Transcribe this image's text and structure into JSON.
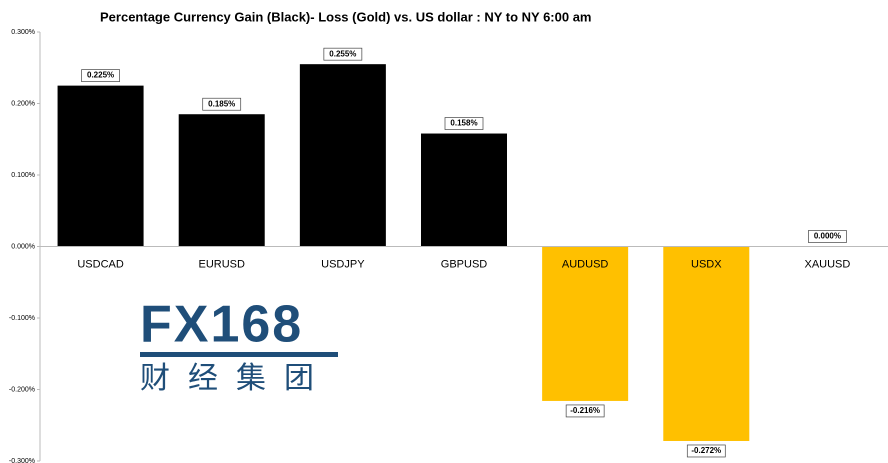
{
  "chart_data": {
    "type": "bar",
    "title": "Percentage Currency  Gain (Black)- Loss (Gold)  vs. US dollar :  NY  to  NY 6:00 am",
    "categories": [
      "USDCAD",
      "EURUSD",
      "USDJPY",
      "GBPUSD",
      "AUDUSD",
      "USDX",
      "XAUUSD"
    ],
    "values": [
      0.225,
      0.185,
      0.255,
      0.158,
      -0.216,
      -0.272,
      0.0
    ],
    "value_labels": [
      "0.225%",
      "0.185%",
      "0.255%",
      "0.158%",
      "-0.216%",
      "-0.272%",
      "0.000%"
    ],
    "colors": [
      "#000000",
      "#000000",
      "#000000",
      "#000000",
      "#ffc000",
      "#ffc000",
      "#000000"
    ],
    "ylim": [
      -0.3,
      0.3
    ],
    "yticks": [
      {
        "value": -0.3,
        "label": "-0.300%"
      },
      {
        "value": -0.2,
        "label": "-0.200%"
      },
      {
        "value": -0.1,
        "label": "-0.100%"
      },
      {
        "value": 0,
        "label": "0.000%"
      },
      {
        "value": 0.1,
        "label": "0.100%"
      },
      {
        "value": 0.2,
        "label": "0.200%"
      },
      {
        "value": 0.3,
        "label": "0.300%"
      }
    ],
    "grid": false,
    "watermark": {
      "text": "FX168",
      "subtitle": "财经集团"
    }
  }
}
